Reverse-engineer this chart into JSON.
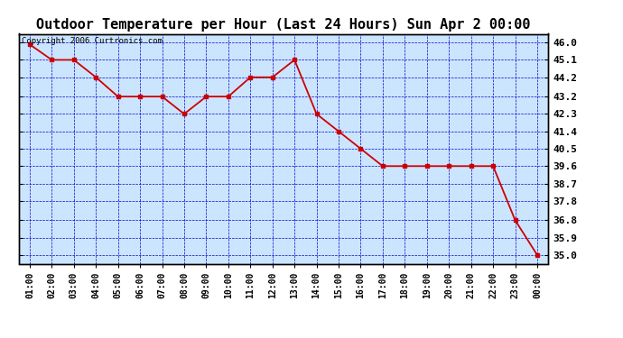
{
  "title": "Outdoor Temperature per Hour (Last 24 Hours) Sun Apr 2 00:00",
  "copyright": "Copyright 2006 Curtronics.com",
  "x_labels": [
    "01:00",
    "02:00",
    "03:00",
    "04:00",
    "05:00",
    "06:00",
    "07:00",
    "08:00",
    "09:00",
    "10:00",
    "11:00",
    "12:00",
    "13:00",
    "14:00",
    "15:00",
    "16:00",
    "17:00",
    "18:00",
    "19:00",
    "20:00",
    "21:00",
    "22:00",
    "23:00",
    "00:00"
  ],
  "y_values": [
    45.9,
    45.1,
    45.1,
    44.2,
    43.2,
    43.2,
    43.2,
    42.3,
    43.2,
    43.2,
    44.2,
    44.2,
    45.1,
    42.3,
    41.4,
    40.5,
    39.6,
    39.6,
    39.6,
    39.6,
    39.6,
    39.6,
    36.8,
    35.0
  ],
  "y_ticks": [
    35.0,
    35.9,
    36.8,
    37.8,
    38.7,
    39.6,
    40.5,
    41.4,
    42.3,
    43.2,
    44.2,
    45.1,
    46.0
  ],
  "y_min": 34.55,
  "y_max": 46.45,
  "line_color": "#cc0000",
  "marker_color": "#cc0000",
  "plot_bg_color": "#cce5ff",
  "grid_color": "#0000cc",
  "border_color": "#000000",
  "title_fontsize": 11,
  "copyright_fontsize": 6.5
}
